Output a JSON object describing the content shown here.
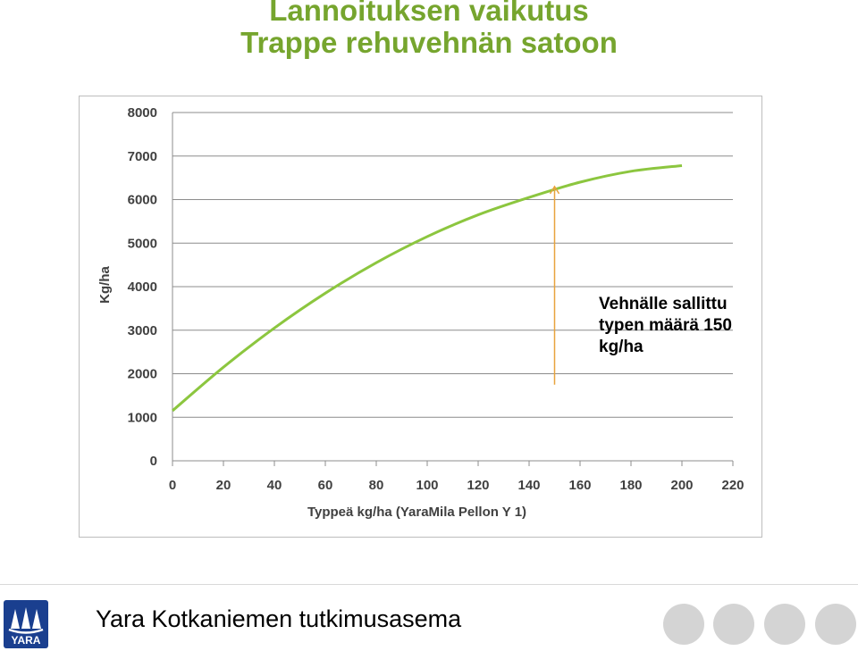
{
  "slide": {
    "title_line1": "Lannoituksen vaikutus",
    "title_line2": "Trappe rehuvehnän satoon",
    "footer_text": "Yara Kotkaniemen tutkimusasema",
    "logo_text": "YARA",
    "brand_color": "#1a3f8f",
    "title_color": "#76a52e"
  },
  "chart_data": {
    "type": "line",
    "title": "",
    "xlabel": "Typpeä kg/ha (YaraMila Pellon Y 1)",
    "ylabel": "Kg/ha",
    "xlim": [
      0,
      220
    ],
    "ylim": [
      0,
      8000
    ],
    "xticks": [
      0,
      20,
      40,
      60,
      80,
      100,
      120,
      140,
      160,
      180,
      200,
      220
    ],
    "yticks": [
      0,
      1000,
      2000,
      3000,
      4000,
      5000,
      6000,
      7000,
      8000
    ],
    "grid": "horizontal",
    "series": [
      {
        "color": "#8cc63f",
        "x": [
          0,
          20,
          40,
          60,
          80,
          100,
          120,
          140,
          160,
          180,
          200
        ],
        "y": [
          1150,
          2150,
          3050,
          3850,
          4550,
          5150,
          5650,
          6050,
          6400,
          6650,
          6780
        ]
      }
    ],
    "annotation": {
      "text_lines": [
        "Vehnälle sallittu",
        "typen määrä 150",
        "kg/ha"
      ],
      "arrow_x": 150,
      "arrow_y_from": 1750,
      "arrow_y_to": 6300,
      "arrow_color": "#e8a33d"
    }
  }
}
